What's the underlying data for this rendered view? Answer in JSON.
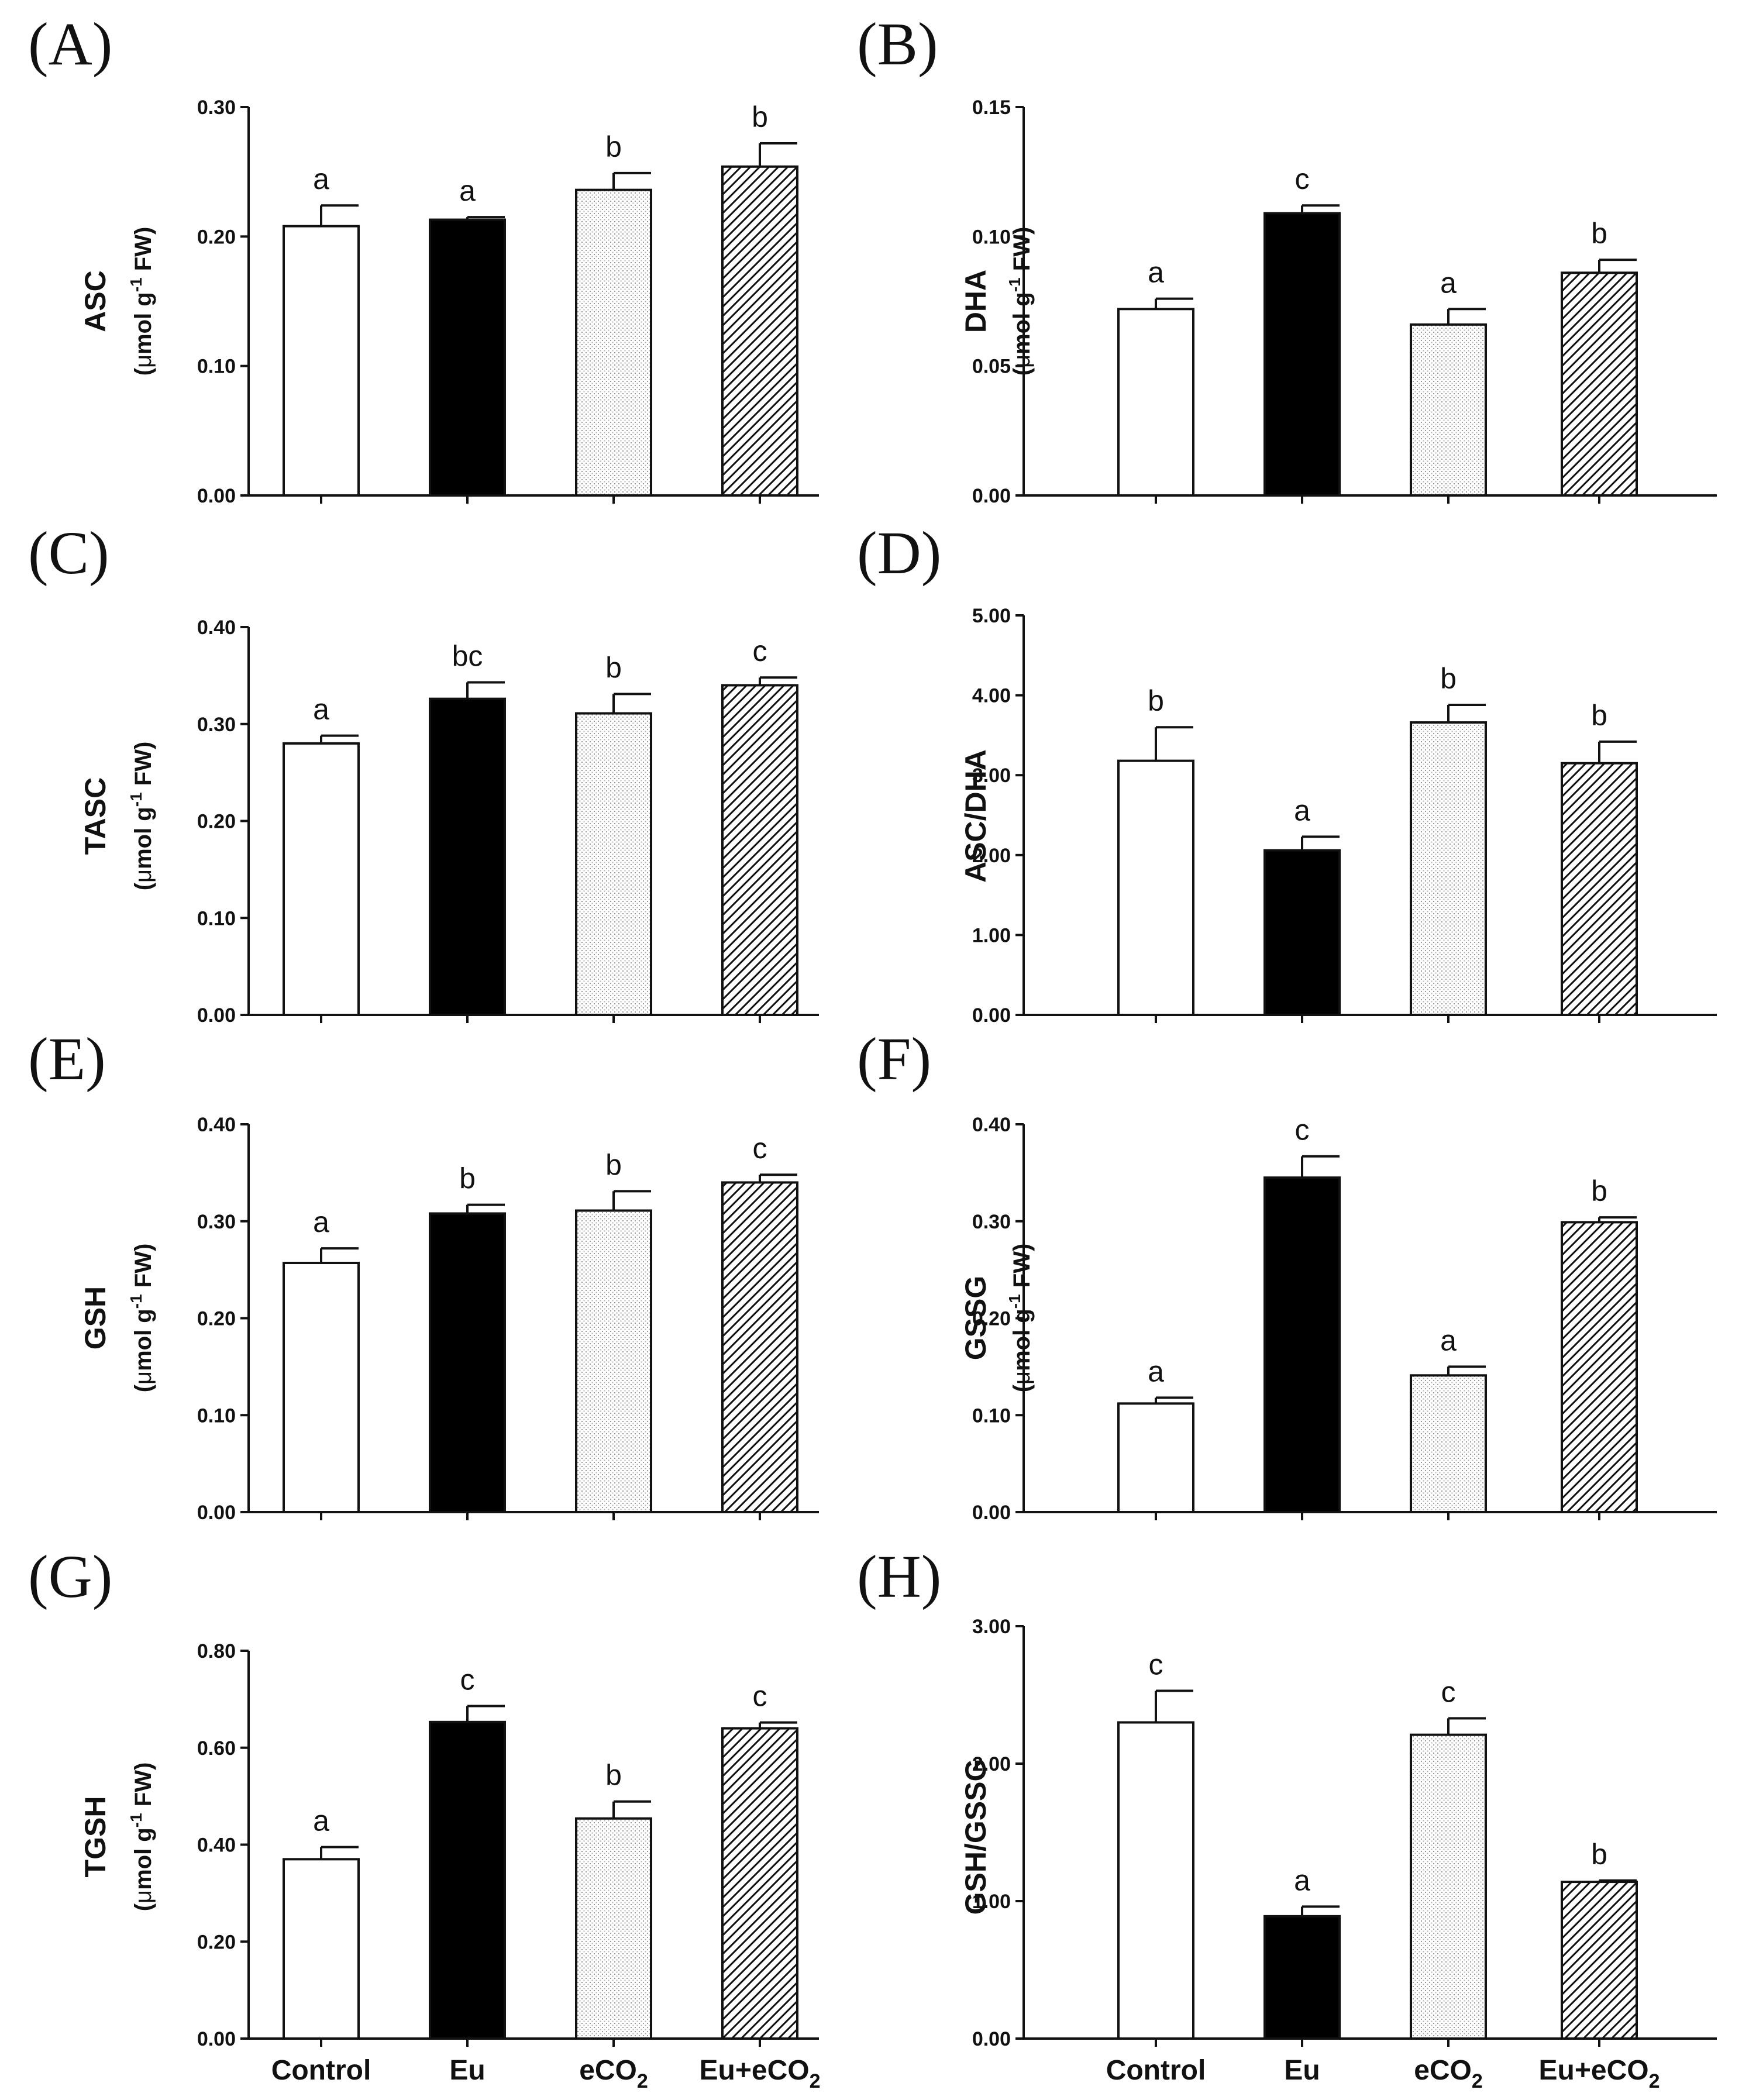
{
  "categories": [
    "Control",
    "Eu",
    "eCO",
    "Eu+eCO"
  ],
  "category_subscripts": [
    "",
    "",
    "2",
    "2"
  ],
  "unit": {
    "open": "(",
    "mu": "μ",
    "mol": "mol g",
    "exp": "-1",
    "fw": " FW)"
  },
  "chart_data": [
    {
      "panel": "(A)",
      "type": "bar",
      "ylabel": "ASC",
      "unit": true,
      "ylim": [
        0,
        0.3
      ],
      "yticks": [
        "0.00",
        "0.10",
        "0.20",
        "0.30"
      ],
      "ytick_values": [
        0,
        0.1,
        0.2,
        0.3
      ],
      "values": [
        0.208,
        0.213,
        0.236,
        0.254
      ],
      "errors": [
        0.016,
        0.002,
        0.013,
        0.018
      ],
      "letters": [
        "a",
        "a",
        "b",
        "b"
      ]
    },
    {
      "panel": "(B)",
      "type": "bar",
      "ylabel": "DHA",
      "unit": true,
      "ylim": [
        0,
        0.15
      ],
      "yticks": [
        "0.00",
        "0.05",
        "0.10",
        "0.15"
      ],
      "ytick_values": [
        0,
        0.05,
        0.1,
        0.15
      ],
      "values": [
        0.072,
        0.109,
        0.066,
        0.086
      ],
      "errors": [
        0.004,
        0.003,
        0.006,
        0.005
      ],
      "letters": [
        "a",
        "c",
        "a",
        "b"
      ]
    },
    {
      "panel": "(C)",
      "type": "bar",
      "ylabel": "TASC",
      "unit": true,
      "ylim": [
        0,
        0.4
      ],
      "yticks": [
        "0.00",
        "0.10",
        "0.20",
        "0.30",
        "0.40"
      ],
      "ytick_values": [
        0,
        0.1,
        0.2,
        0.3,
        0.4
      ],
      "values": [
        0.28,
        0.326,
        0.311,
        0.34
      ],
      "errors": [
        0.008,
        0.017,
        0.02,
        0.008
      ],
      "letters": [
        "a",
        "bc",
        "b",
        "c"
      ]
    },
    {
      "panel": "(D)",
      "type": "bar",
      "ylabel": "ASC/DHA",
      "unit": false,
      "ylim": [
        0,
        5
      ],
      "yticks": [
        "0.00",
        "1.00",
        "2.00",
        "3.00",
        "4.00",
        "5.00"
      ],
      "ytick_values": [
        0,
        1,
        2,
        3,
        4,
        5
      ],
      "values": [
        3.18,
        2.06,
        3.66,
        3.15
      ],
      "errors": [
        0.42,
        0.17,
        0.22,
        0.27
      ],
      "letters": [
        "b",
        "a",
        "b",
        "b"
      ]
    },
    {
      "panel": "(E)",
      "type": "bar",
      "ylabel": "GSH",
      "unit": true,
      "ylim": [
        0,
        0.4
      ],
      "yticks": [
        "0.00",
        "0.10",
        "0.20",
        "0.30",
        "0.40"
      ],
      "ytick_values": [
        0,
        0.1,
        0.2,
        0.3,
        0.4
      ],
      "values": [
        0.257,
        0.308,
        0.311,
        0.34
      ],
      "errors": [
        0.015,
        0.009,
        0.02,
        0.008
      ],
      "letters": [
        "a",
        "b",
        "b",
        "c"
      ]
    },
    {
      "panel": "(F)",
      "type": "bar",
      "ylabel": "GSSG",
      "unit": true,
      "ylim": [
        0,
        0.4
      ],
      "yticks": [
        "0.00",
        "0.10",
        "0.20",
        "0.30",
        "0.40"
      ],
      "ytick_values": [
        0,
        0.1,
        0.2,
        0.3,
        0.4
      ],
      "values": [
        0.112,
        0.345,
        0.141,
        0.299
      ],
      "errors": [
        0.006,
        0.022,
        0.009,
        0.005
      ],
      "letters": [
        "a",
        "c",
        "a",
        "b"
      ]
    },
    {
      "panel": "(G)",
      "type": "bar",
      "ylabel": "TGSH",
      "unit": true,
      "ylim": [
        0,
        0.8
      ],
      "yticks": [
        "0.00",
        "0.20",
        "0.40",
        "0.60",
        "0.80"
      ],
      "ytick_values": [
        0,
        0.2,
        0.4,
        0.6,
        0.8
      ],
      "values": [
        0.37,
        0.653,
        0.454,
        0.64
      ],
      "errors": [
        0.025,
        0.033,
        0.035,
        0.012
      ],
      "letters": [
        "a",
        "c",
        "b",
        "c"
      ]
    },
    {
      "panel": "(H)",
      "type": "bar",
      "ylabel": "GSH/GSSG",
      "unit": false,
      "ylim": [
        0,
        3
      ],
      "yticks": [
        "0.00",
        "1.00",
        "2.00",
        "3.00"
      ],
      "ytick_values": [
        0,
        1,
        2,
        3
      ],
      "values": [
        2.3,
        0.89,
        2.21,
        1.14
      ],
      "errors": [
        0.23,
        0.07,
        0.12,
        0.01
      ],
      "letters": [
        "c",
        "a",
        "c",
        "b"
      ]
    }
  ]
}
